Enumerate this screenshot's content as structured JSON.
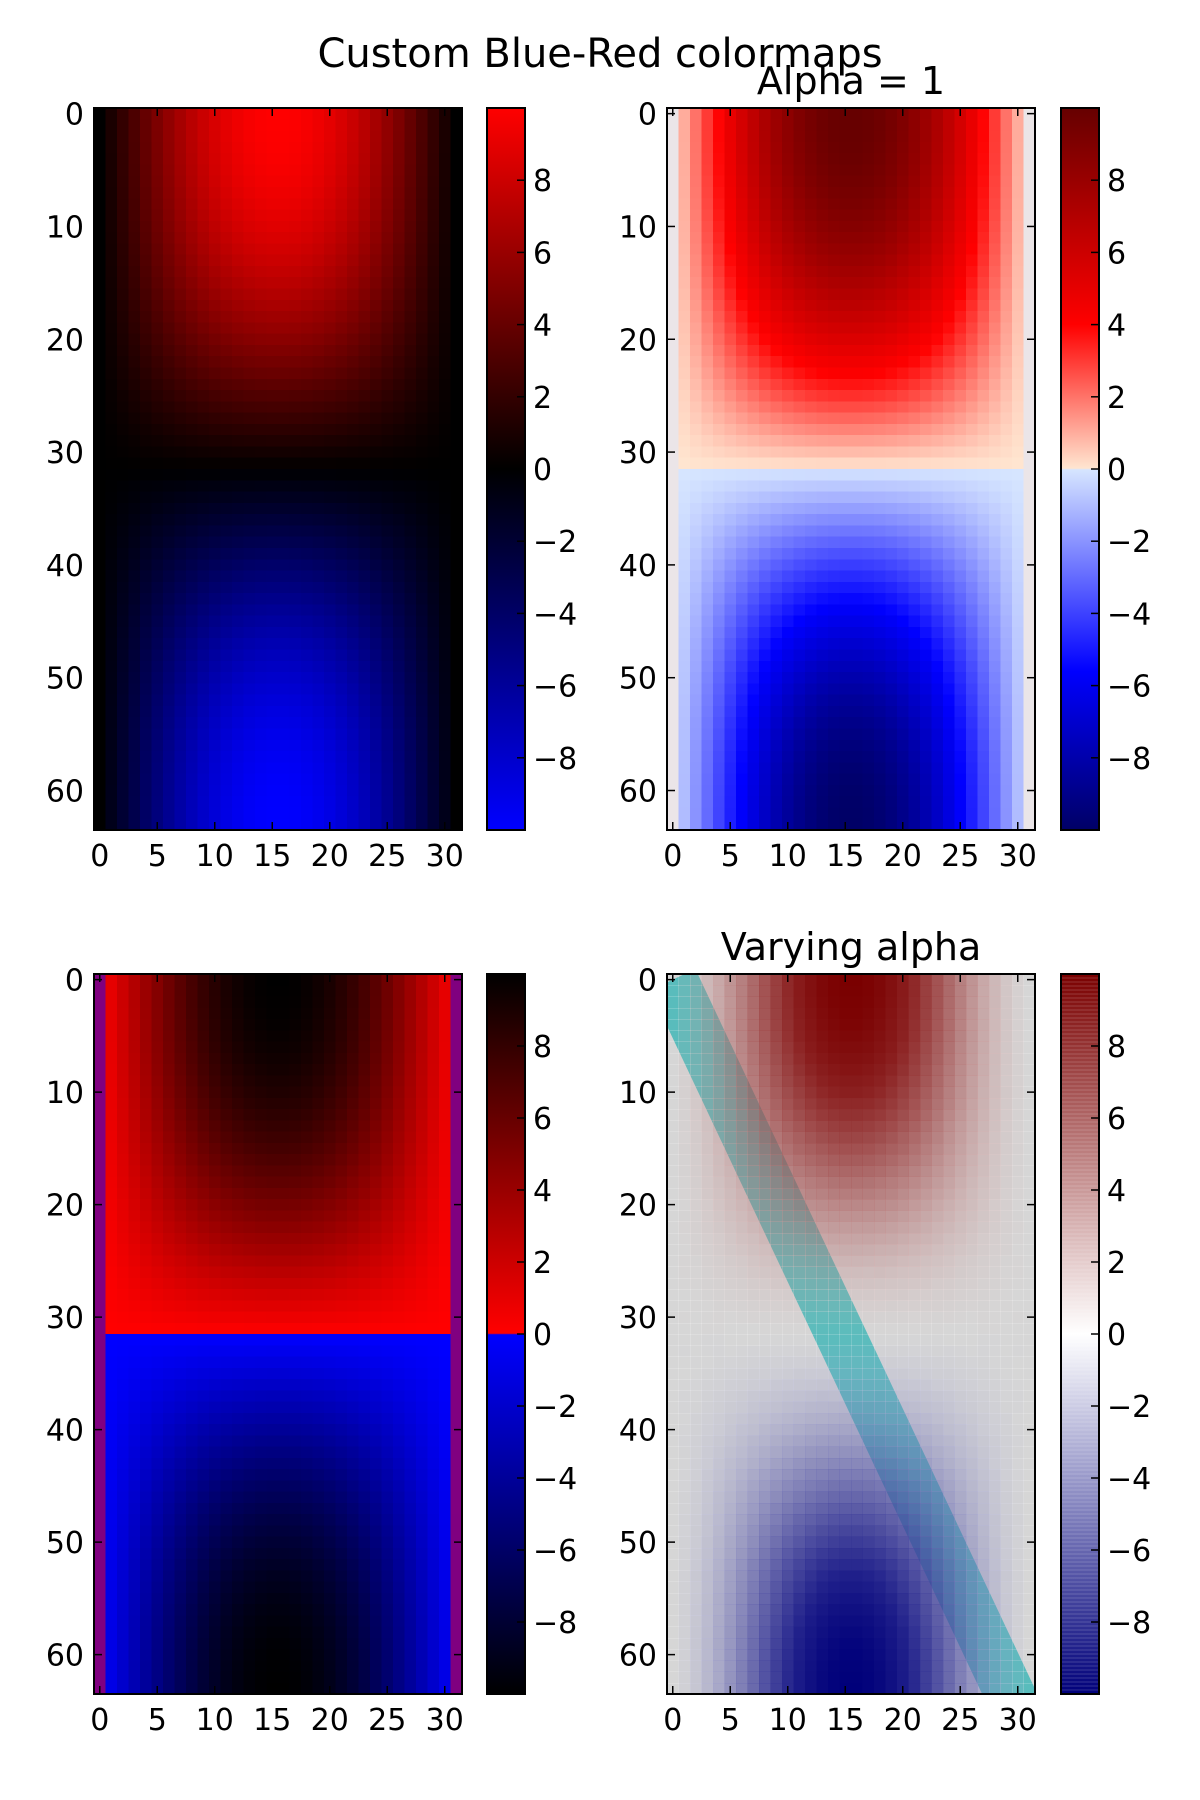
{
  "figure": {
    "suptitle": "Custom Blue-Red colormaps"
  },
  "chart_data": [
    {
      "type": "heatmap",
      "title": "",
      "colormap": "BlueRed1 (blue → black → red)",
      "colormap_stops": [
        {
          "t": 0.0,
          "color": "#0000ff"
        },
        {
          "t": 0.5,
          "color": "#000000"
        },
        {
          "t": 1.0,
          "color": "#ff0000"
        }
      ],
      "cmap_discontinuous": false,
      "alpha_mode": "none",
      "x_ticks": [
        0,
        5,
        10,
        15,
        20,
        25,
        30
      ],
      "y_ticks": [
        0,
        10,
        20,
        30,
        40,
        50,
        60
      ],
      "xlim": [
        -0.5,
        31.5
      ],
      "ylim": [
        63.5,
        -0.5
      ],
      "colorbar_ticks": [
        -8,
        -6,
        -4,
        -2,
        0,
        2,
        4,
        6,
        8
      ],
      "colorbar_range": [
        -10,
        10
      ],
      "data_grid": {
        "cols": 32,
        "rows": 64,
        "formula": "10*sin(x)*cos(y), x,y in [0,pi]",
        "sign_quadrants": [
          [
            1,
            -1
          ],
          [
            -1,
            1
          ]
        ]
      }
    },
    {
      "type": "heatmap",
      "title": "Alpha = 1",
      "colormap": "BlueRed2 (dark blue → blue → light blue | peach → red → dark red)",
      "colormap_stops": [
        {
          "t": 0.0,
          "color": "#000066"
        },
        {
          "t": 0.22,
          "color": "#0000ff"
        },
        {
          "t": 0.499,
          "color": "#d6e5ff"
        },
        {
          "t": 0.501,
          "color": "#ffe5d0"
        },
        {
          "t": 0.7,
          "color": "#ff0000"
        },
        {
          "t": 1.0,
          "color": "#660000"
        }
      ],
      "cmap_discontinuous": true,
      "alpha_mode": "none",
      "x_ticks": [
        0,
        5,
        10,
        15,
        20,
        25,
        30
      ],
      "y_ticks": [
        0,
        10,
        20,
        30,
        40,
        50,
        60
      ],
      "xlim": [
        -0.5,
        31.5
      ],
      "ylim": [
        63.5,
        -0.5
      ],
      "colorbar_ticks": [
        -8,
        -6,
        -4,
        -2,
        0,
        2,
        4,
        6,
        8
      ],
      "colorbar_range": [
        -10,
        10
      ],
      "data_grid": {
        "cols": 32,
        "rows": 64,
        "formula": "10*sin(x)*cos(y), x,y in [0,pi]",
        "sign_quadrants": [
          [
            1,
            -1
          ],
          [
            -1,
            1
          ]
        ]
      }
    },
    {
      "type": "heatmap",
      "title": "",
      "colormap": "BlueRed3 (black → blue | red → black)",
      "colormap_stops": [
        {
          "t": 0.0,
          "color": "#000000"
        },
        {
          "t": 0.499,
          "color": "#0000ff"
        },
        {
          "t": 0.501,
          "color": "#ff0000"
        },
        {
          "t": 1.0,
          "color": "#000000"
        }
      ],
      "cmap_discontinuous": true,
      "alpha_mode": "none",
      "x_ticks": [
        0,
        5,
        10,
        15,
        20,
        25,
        30
      ],
      "y_ticks": [
        0,
        10,
        20,
        30,
        40,
        50,
        60
      ],
      "xlim": [
        -0.5,
        31.5
      ],
      "ylim": [
        63.5,
        -0.5
      ],
      "colorbar_ticks": [
        -8,
        -6,
        -4,
        -2,
        0,
        2,
        4,
        6,
        8
      ],
      "colorbar_range": [
        -10,
        10
      ],
      "data_grid": {
        "cols": 32,
        "rows": 64,
        "formula": "10*sin(x)*cos(y), x,y in [0,pi]",
        "sign_quadrants": [
          [
            1,
            -1
          ],
          [
            -1,
            1
          ]
        ]
      }
    },
    {
      "type": "heatmap",
      "title": "Varying alpha",
      "colormap": "BlueRedAlpha (dark blue → white → dark red, alpha low at center)",
      "colormap_stops": [
        {
          "t": 0.0,
          "color": "#00007a"
        },
        {
          "t": 0.5,
          "color": "#ffffff"
        },
        {
          "t": 1.0,
          "color": "#7a0000"
        }
      ],
      "cmap_discontinuous": false,
      "alpha_mode": "varying",
      "background_color": "#c0c0c0",
      "overlay_line": {
        "color": "#009999",
        "x": [
          0,
          30
        ],
        "y": [
          0,
          65
        ],
        "note": "thick teal diagonal stripe drawn behind the semi-transparent image"
      },
      "x_ticks": [
        0,
        5,
        10,
        15,
        20,
        25,
        30
      ],
      "y_ticks": [
        0,
        10,
        20,
        30,
        40,
        50,
        60
      ],
      "xlim": [
        -0.5,
        31.5
      ],
      "ylim": [
        63.5,
        -0.5
      ],
      "colorbar_ticks": [
        -8,
        -6,
        -4,
        -2,
        0,
        2,
        4,
        6,
        8
      ],
      "colorbar_range": [
        -10,
        10
      ],
      "data_grid": {
        "cols": 32,
        "rows": 64,
        "formula": "10*sin(x)*cos(y), x,y in [0,pi]",
        "sign_quadrants": [
          [
            1,
            -1
          ],
          [
            -1,
            1
          ]
        ]
      }
    }
  ]
}
